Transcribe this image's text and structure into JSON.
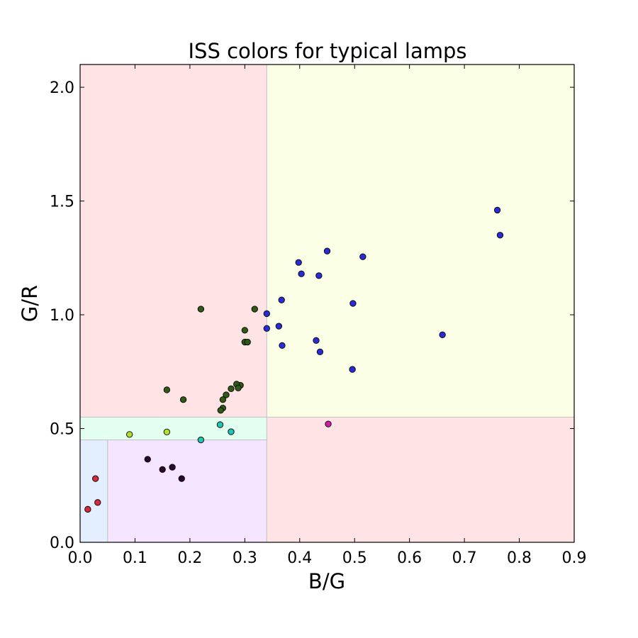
{
  "chart_data": {
    "type": "scatter",
    "title": "ISS colors for typical lamps",
    "xlabel": "B/G",
    "ylabel": "G/R",
    "xlim": [
      0.0,
      0.9
    ],
    "ylim": [
      0.0,
      2.1
    ],
    "xticks": [
      "0.0",
      "0.1",
      "0.2",
      "0.3",
      "0.4",
      "0.5",
      "0.6",
      "0.7",
      "0.8",
      "0.9"
    ],
    "yticks": [
      "0.0",
      "0.5",
      "1.0",
      "1.5",
      "2.0"
    ],
    "grid": false,
    "regions": [
      {
        "x0": 0.0,
        "x1": 0.34,
        "y0": 0.55,
        "y1": 2.1,
        "color": "#ffe3e5"
      },
      {
        "x0": 0.34,
        "x1": 0.9,
        "y0": 0.55,
        "y1": 2.1,
        "color": "#fbffe5"
      },
      {
        "x0": 0.34,
        "x1": 0.9,
        "y0": 0.0,
        "y1": 0.55,
        "color": "#ffe3e5"
      },
      {
        "x0": 0.0,
        "x1": 0.34,
        "y0": 0.45,
        "y1": 0.55,
        "color": "#e3fff0"
      },
      {
        "x0": 0.05,
        "x1": 0.34,
        "y0": 0.0,
        "y1": 0.45,
        "color": "#f5e5ff"
      },
      {
        "x0": 0.0,
        "x1": 0.05,
        "y0": 0.0,
        "y1": 0.45,
        "color": "#e3eeff"
      }
    ],
    "series": [
      {
        "color": "#2b2bd6",
        "points": [
          [
            0.76,
            1.46
          ],
          [
            0.765,
            1.35
          ],
          [
            0.45,
            1.28
          ],
          [
            0.515,
            1.255
          ],
          [
            0.398,
            1.23
          ],
          [
            0.403,
            1.18
          ],
          [
            0.435,
            1.172
          ],
          [
            0.367,
            1.065
          ],
          [
            0.497,
            1.05
          ],
          [
            0.34,
            1.005
          ],
          [
            0.362,
            0.95
          ],
          [
            0.34,
            0.94
          ],
          [
            0.66,
            0.912
          ],
          [
            0.43,
            0.887
          ],
          [
            0.368,
            0.865
          ],
          [
            0.437,
            0.837
          ],
          [
            0.496,
            0.76
          ]
        ]
      },
      {
        "color": "#2f5a14",
        "points": [
          [
            0.22,
            1.025
          ],
          [
            0.318,
            1.025
          ],
          [
            0.3,
            0.932
          ],
          [
            0.3,
            0.88
          ],
          [
            0.305,
            0.88
          ],
          [
            0.158,
            0.67
          ],
          [
            0.292,
            0.69
          ],
          [
            0.285,
            0.695
          ],
          [
            0.275,
            0.675
          ],
          [
            0.288,
            0.678
          ],
          [
            0.266,
            0.648
          ],
          [
            0.188,
            0.627
          ],
          [
            0.26,
            0.627
          ],
          [
            0.26,
            0.59
          ],
          [
            0.256,
            0.58
          ]
        ]
      },
      {
        "color": "#b3dc2e",
        "points": [
          [
            0.09,
            0.474
          ],
          [
            0.158,
            0.485
          ]
        ]
      },
      {
        "color": "#1fc6b4",
        "points": [
          [
            0.255,
            0.517
          ],
          [
            0.275,
            0.486
          ],
          [
            0.22,
            0.45
          ]
        ]
      },
      {
        "color": "#cc1fa3",
        "points": [
          [
            0.452,
            0.52
          ]
        ]
      },
      {
        "color": "#2a0a2a",
        "points": [
          [
            0.123,
            0.365
          ],
          [
            0.15,
            0.32
          ],
          [
            0.168,
            0.33
          ],
          [
            0.185,
            0.28
          ]
        ]
      },
      {
        "color": "#d42a3a",
        "points": [
          [
            0.028,
            0.28
          ],
          [
            0.032,
            0.175
          ],
          [
            0.014,
            0.145
          ]
        ]
      }
    ]
  }
}
